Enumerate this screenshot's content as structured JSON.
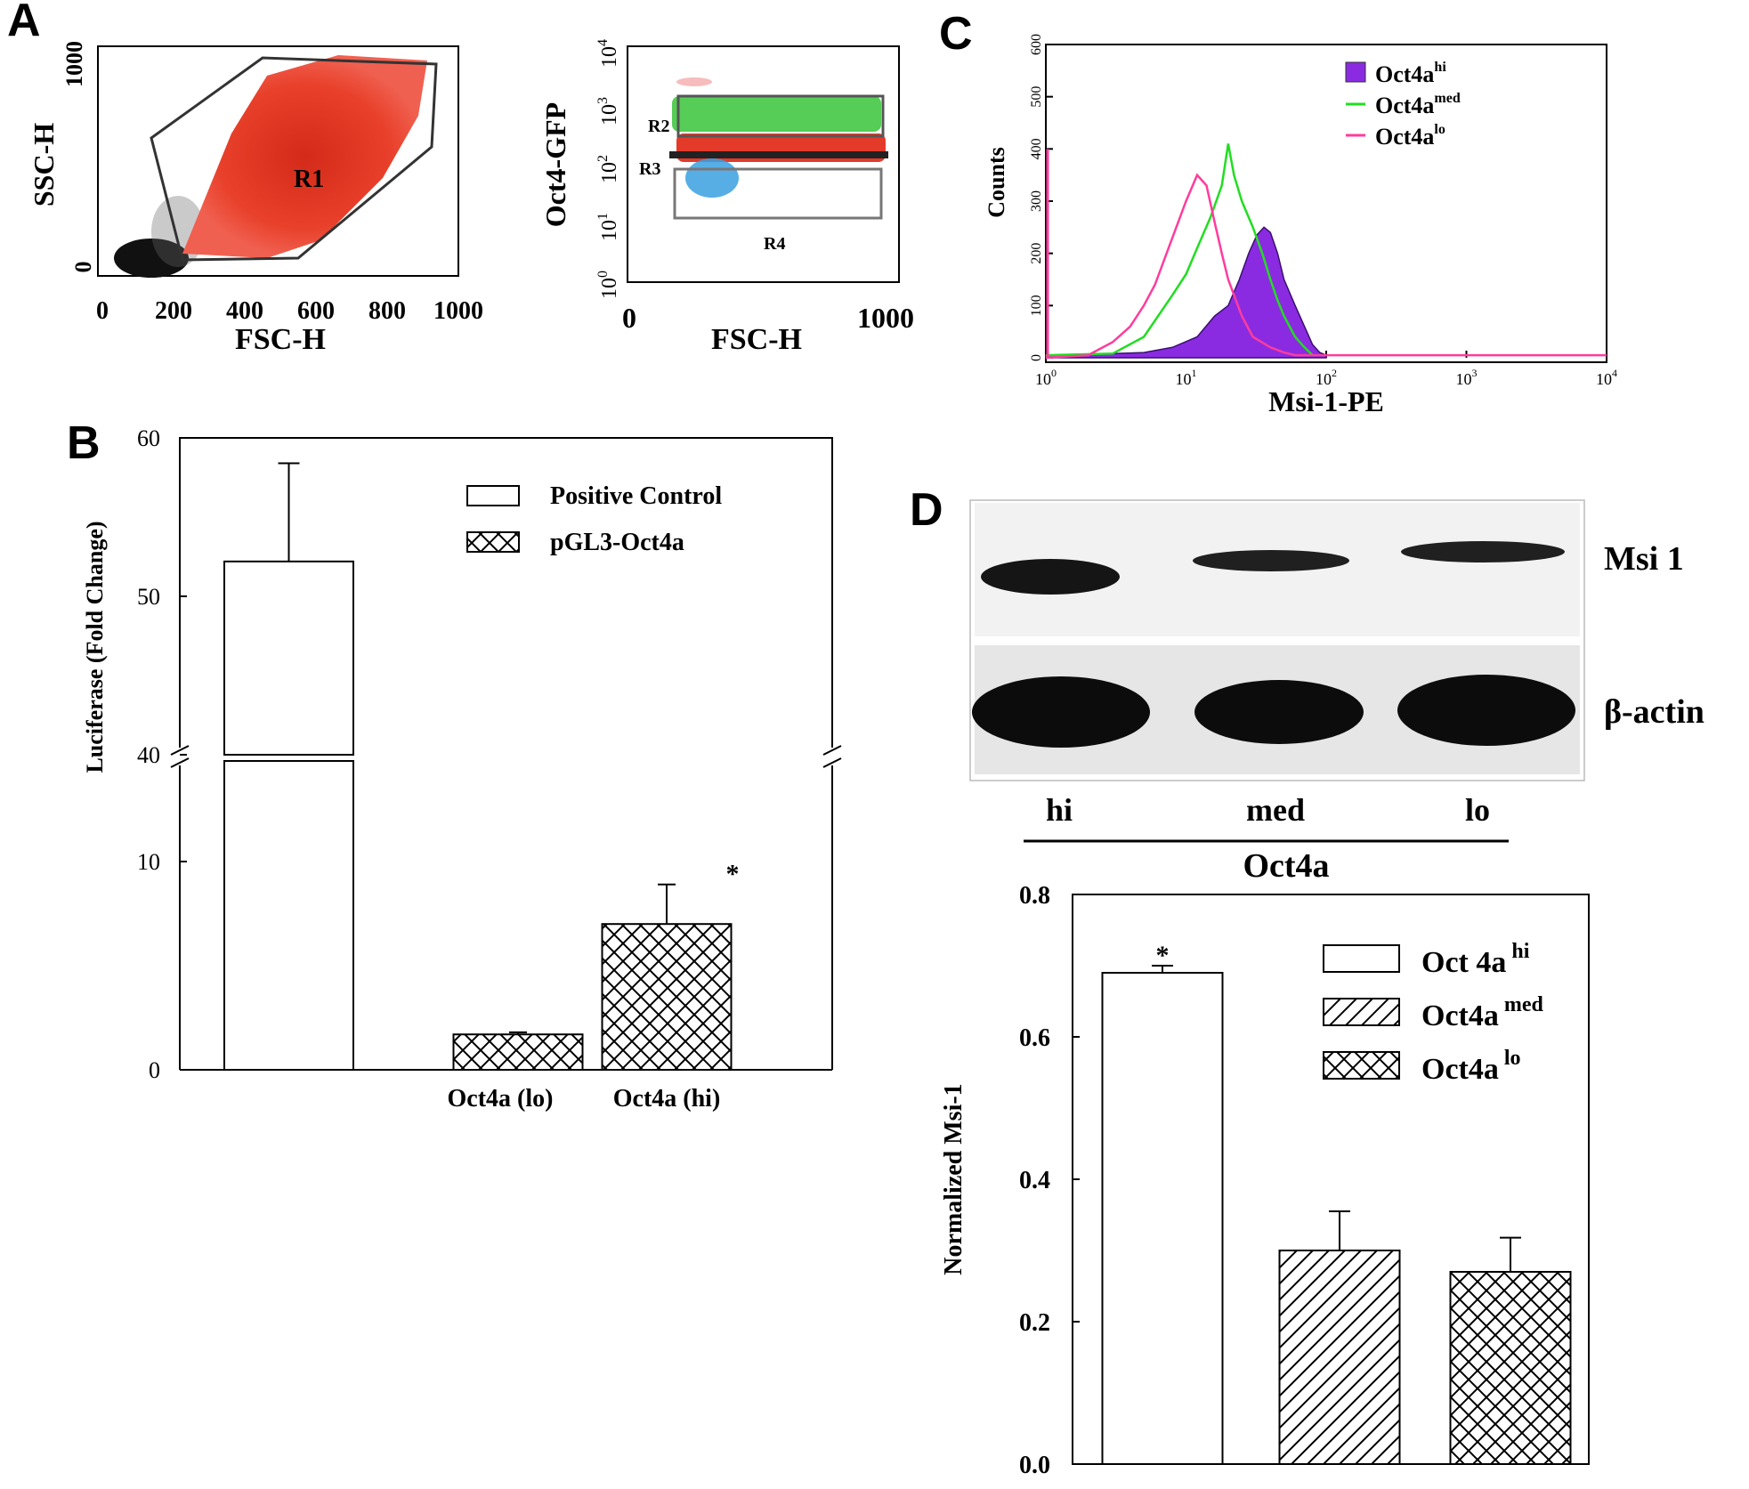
{
  "panels": {
    "A": {
      "letter": "A",
      "scatter1": {
        "ylabel": "SSC-H",
        "xlabel": "FSC-H",
        "x_ticks": [
          "0",
          "200",
          "400",
          "600",
          "800",
          "1000"
        ],
        "y_ticks": [
          "0",
          "1000"
        ],
        "gate": "R1"
      },
      "scatter2": {
        "ylabel": "Oct4-GFP",
        "xlabel": "FSC-H",
        "x_ticks": [
          "0",
          "1000"
        ],
        "y_ticks": [
          "0",
          "1",
          "2",
          "3",
          "4"
        ],
        "gates": [
          "R2",
          "R3",
          "R4"
        ]
      }
    },
    "B": {
      "letter": "B",
      "ylabel": "Luciferase (Fold Change)",
      "legend": [
        "Positive Control",
        "pGL3-Oct4a"
      ],
      "star": "*"
    },
    "C": {
      "letter": "C",
      "ylabel": "Counts",
      "xlabel": "Msi-1-PE",
      "y_ticks": [
        "0",
        "100",
        "200",
        "300",
        "400",
        "500",
        "600"
      ],
      "x_ticks": [
        "0",
        "1",
        "2",
        "3",
        "4"
      ],
      "legend": [
        {
          "base": "Oct4a",
          "sup": "hi",
          "color": "#8a2be2"
        },
        {
          "base": "Oct4a",
          "sup": "med",
          "color": "#22dd22"
        },
        {
          "base": "Oct4a",
          "sup": "lo",
          "color": "#ff3c9c"
        }
      ]
    },
    "D": {
      "letter": "D",
      "blot": {
        "row_labels": [
          "Msi 1",
          "β-actin"
        ],
        "lane_labels": [
          "hi",
          "med",
          "lo"
        ],
        "group_label": "Oct4a"
      },
      "ylabel": "Normalized Msi-1",
      "legend": [
        {
          "base": "Oct 4a",
          "sup": "hi"
        },
        {
          "base": "Oct4a",
          "sup": "med"
        },
        {
          "base": "Oct4a",
          "sup": "lo"
        }
      ],
      "star": "*"
    }
  },
  "chart_data": [
    {
      "panel": "B",
      "type": "bar",
      "categories": [
        "",
        "Oct4a (lo)",
        "Oct4a (hi)"
      ],
      "series": [
        {
          "name": "Positive Control",
          "values": [
            52.2,
            null,
            null
          ],
          "errors": [
            6.2,
            null,
            null
          ],
          "pattern": "open"
        },
        {
          "name": "pGL3-Oct4a",
          "values": [
            null,
            1.7,
            7.0
          ],
          "errors": [
            null,
            0.1,
            1.9
          ],
          "pattern": "crosshatch"
        }
      ],
      "y_ticks": [
        0,
        10,
        40,
        50,
        60
      ],
      "y_break": [
        12,
        40
      ],
      "ylim": [
        0,
        60
      ]
    },
    {
      "panel": "D",
      "type": "bar",
      "categories": [
        "Oct 4a hi",
        "Oct4a med",
        "Oct4a lo"
      ],
      "values": [
        0.69,
        0.3,
        0.27
      ],
      "errors": [
        0.01,
        0.055,
        0.048
      ],
      "patterns": [
        "open",
        "diagonal",
        "crosshatch"
      ],
      "y_ticks": [
        0.0,
        0.2,
        0.4,
        0.6,
        0.8
      ],
      "ylim": [
        0,
        0.8
      ]
    },
    {
      "panel": "C",
      "type": "line",
      "x_scale": "log",
      "xlim": [
        1,
        10000
      ],
      "ylim": [
        0,
        600
      ],
      "series": [
        {
          "name": "Oct4a hi",
          "fill": true,
          "x": [
            1,
            3,
            5,
            8,
            12,
            16,
            20,
            24,
            28,
            32,
            36,
            40,
            45,
            50,
            60,
            70,
            80,
            90,
            100
          ],
          "y": [
            5,
            8,
            10,
            20,
            40,
            80,
            100,
            150,
            200,
            235,
            250,
            240,
            200,
            150,
            100,
            60,
            25,
            10,
            5
          ]
        },
        {
          "name": "Oct4a med",
          "fill": false,
          "x": [
            1,
            3,
            5,
            8,
            10,
            12,
            15,
            18,
            20,
            22,
            25,
            30,
            35,
            40,
            45,
            50,
            60,
            70,
            80
          ],
          "y": [
            5,
            8,
            40,
            120,
            160,
            210,
            270,
            330,
            410,
            350,
            300,
            250,
            200,
            150,
            110,
            80,
            40,
            20,
            5
          ]
        },
        {
          "name": "Oct4a lo",
          "fill": false,
          "x": [
            1,
            2,
            3,
            4,
            5,
            6,
            8,
            10,
            12,
            14,
            16,
            18,
            20,
            25,
            30,
            40,
            50,
            60,
            10000
          ],
          "y": [
            0,
            5,
            30,
            60,
            100,
            140,
            230,
            300,
            350,
            330,
            260,
            200,
            150,
            80,
            40,
            20,
            10,
            5,
            5
          ]
        }
      ]
    }
  ]
}
